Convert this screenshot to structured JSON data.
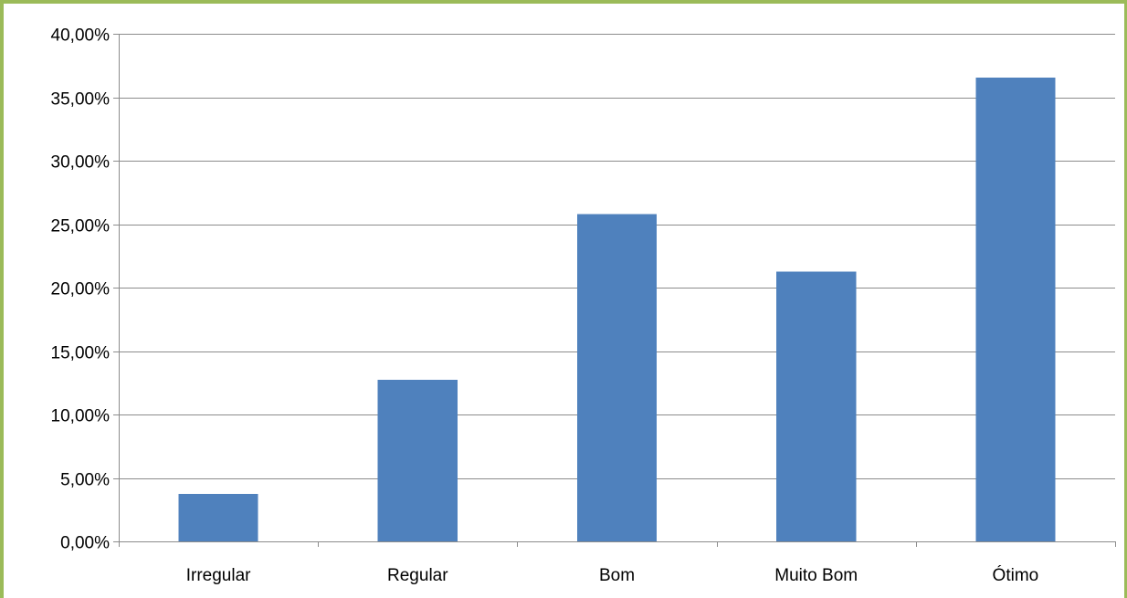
{
  "chart_data": {
    "type": "bar",
    "categories": [
      "Irregular",
      "Regular",
      "Bom",
      "Muito Bom",
      "Ótimo"
    ],
    "values": [
      3.75,
      12.75,
      25.8,
      21.25,
      36.55
    ],
    "ylim": [
      0,
      40
    ],
    "yticks": [
      0,
      5,
      10,
      15,
      20,
      25,
      30,
      35,
      40
    ],
    "ytick_labels": [
      "0,00%",
      "5,00%",
      "10,00%",
      "15,00%",
      "20,00%",
      "25,00%",
      "30,00%",
      "35,00%",
      "40,00%"
    ],
    "bar_color": "#4f81bd",
    "frame_color": "#9bbb59",
    "grid": true,
    "legend": "none"
  }
}
